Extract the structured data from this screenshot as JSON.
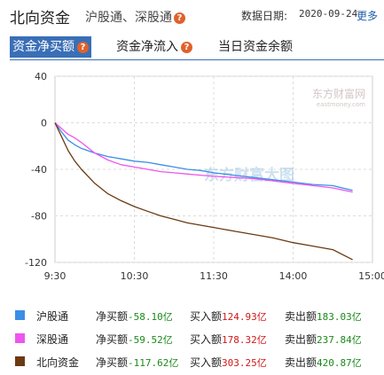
{
  "header": {
    "title": "北向资金",
    "subtitle": "沪股通、深股通",
    "date_label": "数据日期:",
    "date_value": "2020-09-24",
    "more_label": "更多"
  },
  "tabs": [
    {
      "label": "资金净买额",
      "active": true,
      "has_help": true
    },
    {
      "label": "资金净流入",
      "active": false,
      "has_help": true
    },
    {
      "label": "当日资金余额",
      "active": false,
      "has_help": false
    }
  ],
  "colors": {
    "hu": "#3a8ee6",
    "shen": "#ee55ee",
    "north": "#6b3a12",
    "accent": "#3a6fb6",
    "help_badge": "#e0612a"
  },
  "watermark": {
    "brand": "东方财富网",
    "domain": "eastmoney.com",
    "center": "东方财富大图"
  },
  "chart_data": {
    "type": "line",
    "x_ticks": [
      "9:30",
      "10:30",
      "11:30",
      "14:00",
      "15:00"
    ],
    "y_ticks": [
      40,
      0,
      -40,
      -80,
      -120
    ],
    "ylim": [
      -120,
      40
    ],
    "grid": true,
    "x_session_minutes": [
      0,
      240
    ],
    "series": [
      {
        "name": "沪股通",
        "color": "#3a8ee6",
        "x": [
          0,
          5,
          10,
          15,
          20,
          30,
          40,
          50,
          60,
          70,
          80,
          90,
          100,
          110,
          120,
          135,
          150,
          165,
          180,
          195,
          210,
          225
        ],
        "values": [
          0,
          -8,
          -15,
          -19,
          -22,
          -26,
          -29,
          -31,
          -33,
          -34,
          -36,
          -38,
          -40,
          -41,
          -43,
          -45,
          -47,
          -49,
          -51,
          -53,
          -54,
          -58.1
        ]
      },
      {
        "name": "深股通",
        "color": "#ee55ee",
        "x": [
          0,
          5,
          10,
          15,
          20,
          30,
          40,
          50,
          60,
          70,
          80,
          90,
          100,
          110,
          120,
          135,
          150,
          165,
          180,
          195,
          210,
          225
        ],
        "values": [
          0,
          -5,
          -10,
          -13,
          -17,
          -26,
          -32,
          -36,
          -38,
          -40,
          -42,
          -43,
          -44,
          -45,
          -46,
          -47,
          -48,
          -50,
          -52,
          -54,
          -56,
          -59.52
        ]
      },
      {
        "name": "北向资金",
        "color": "#6b3a12",
        "x": [
          0,
          5,
          10,
          15,
          20,
          30,
          40,
          50,
          60,
          70,
          80,
          90,
          100,
          110,
          120,
          135,
          150,
          165,
          180,
          195,
          210,
          225
        ],
        "values": [
          0,
          -12,
          -24,
          -33,
          -40,
          -52,
          -61,
          -67,
          -72,
          -76,
          -80,
          -83,
          -86,
          -88,
          -90,
          -93,
          -96,
          -99,
          -103,
          -106,
          -109,
          -117.62
        ]
      }
    ]
  },
  "legend": [
    {
      "name": "沪股通",
      "net_label": "净买额",
      "net_value": "-58.10亿",
      "buy_label": "买入额",
      "buy_value": "124.93亿",
      "sell_label": "卖出额",
      "sell_value": "183.03亿"
    },
    {
      "name": "深股通",
      "net_label": "净买额",
      "net_value": "-59.52亿",
      "buy_label": "买入额",
      "buy_value": "178.32亿",
      "sell_label": "卖出额",
      "sell_value": "237.84亿"
    },
    {
      "name": "北向资金",
      "net_label": "净买额",
      "net_value": "-117.62亿",
      "buy_label": "买入额",
      "buy_value": "303.25亿",
      "sell_label": "卖出额",
      "sell_value": "420.87亿"
    }
  ]
}
